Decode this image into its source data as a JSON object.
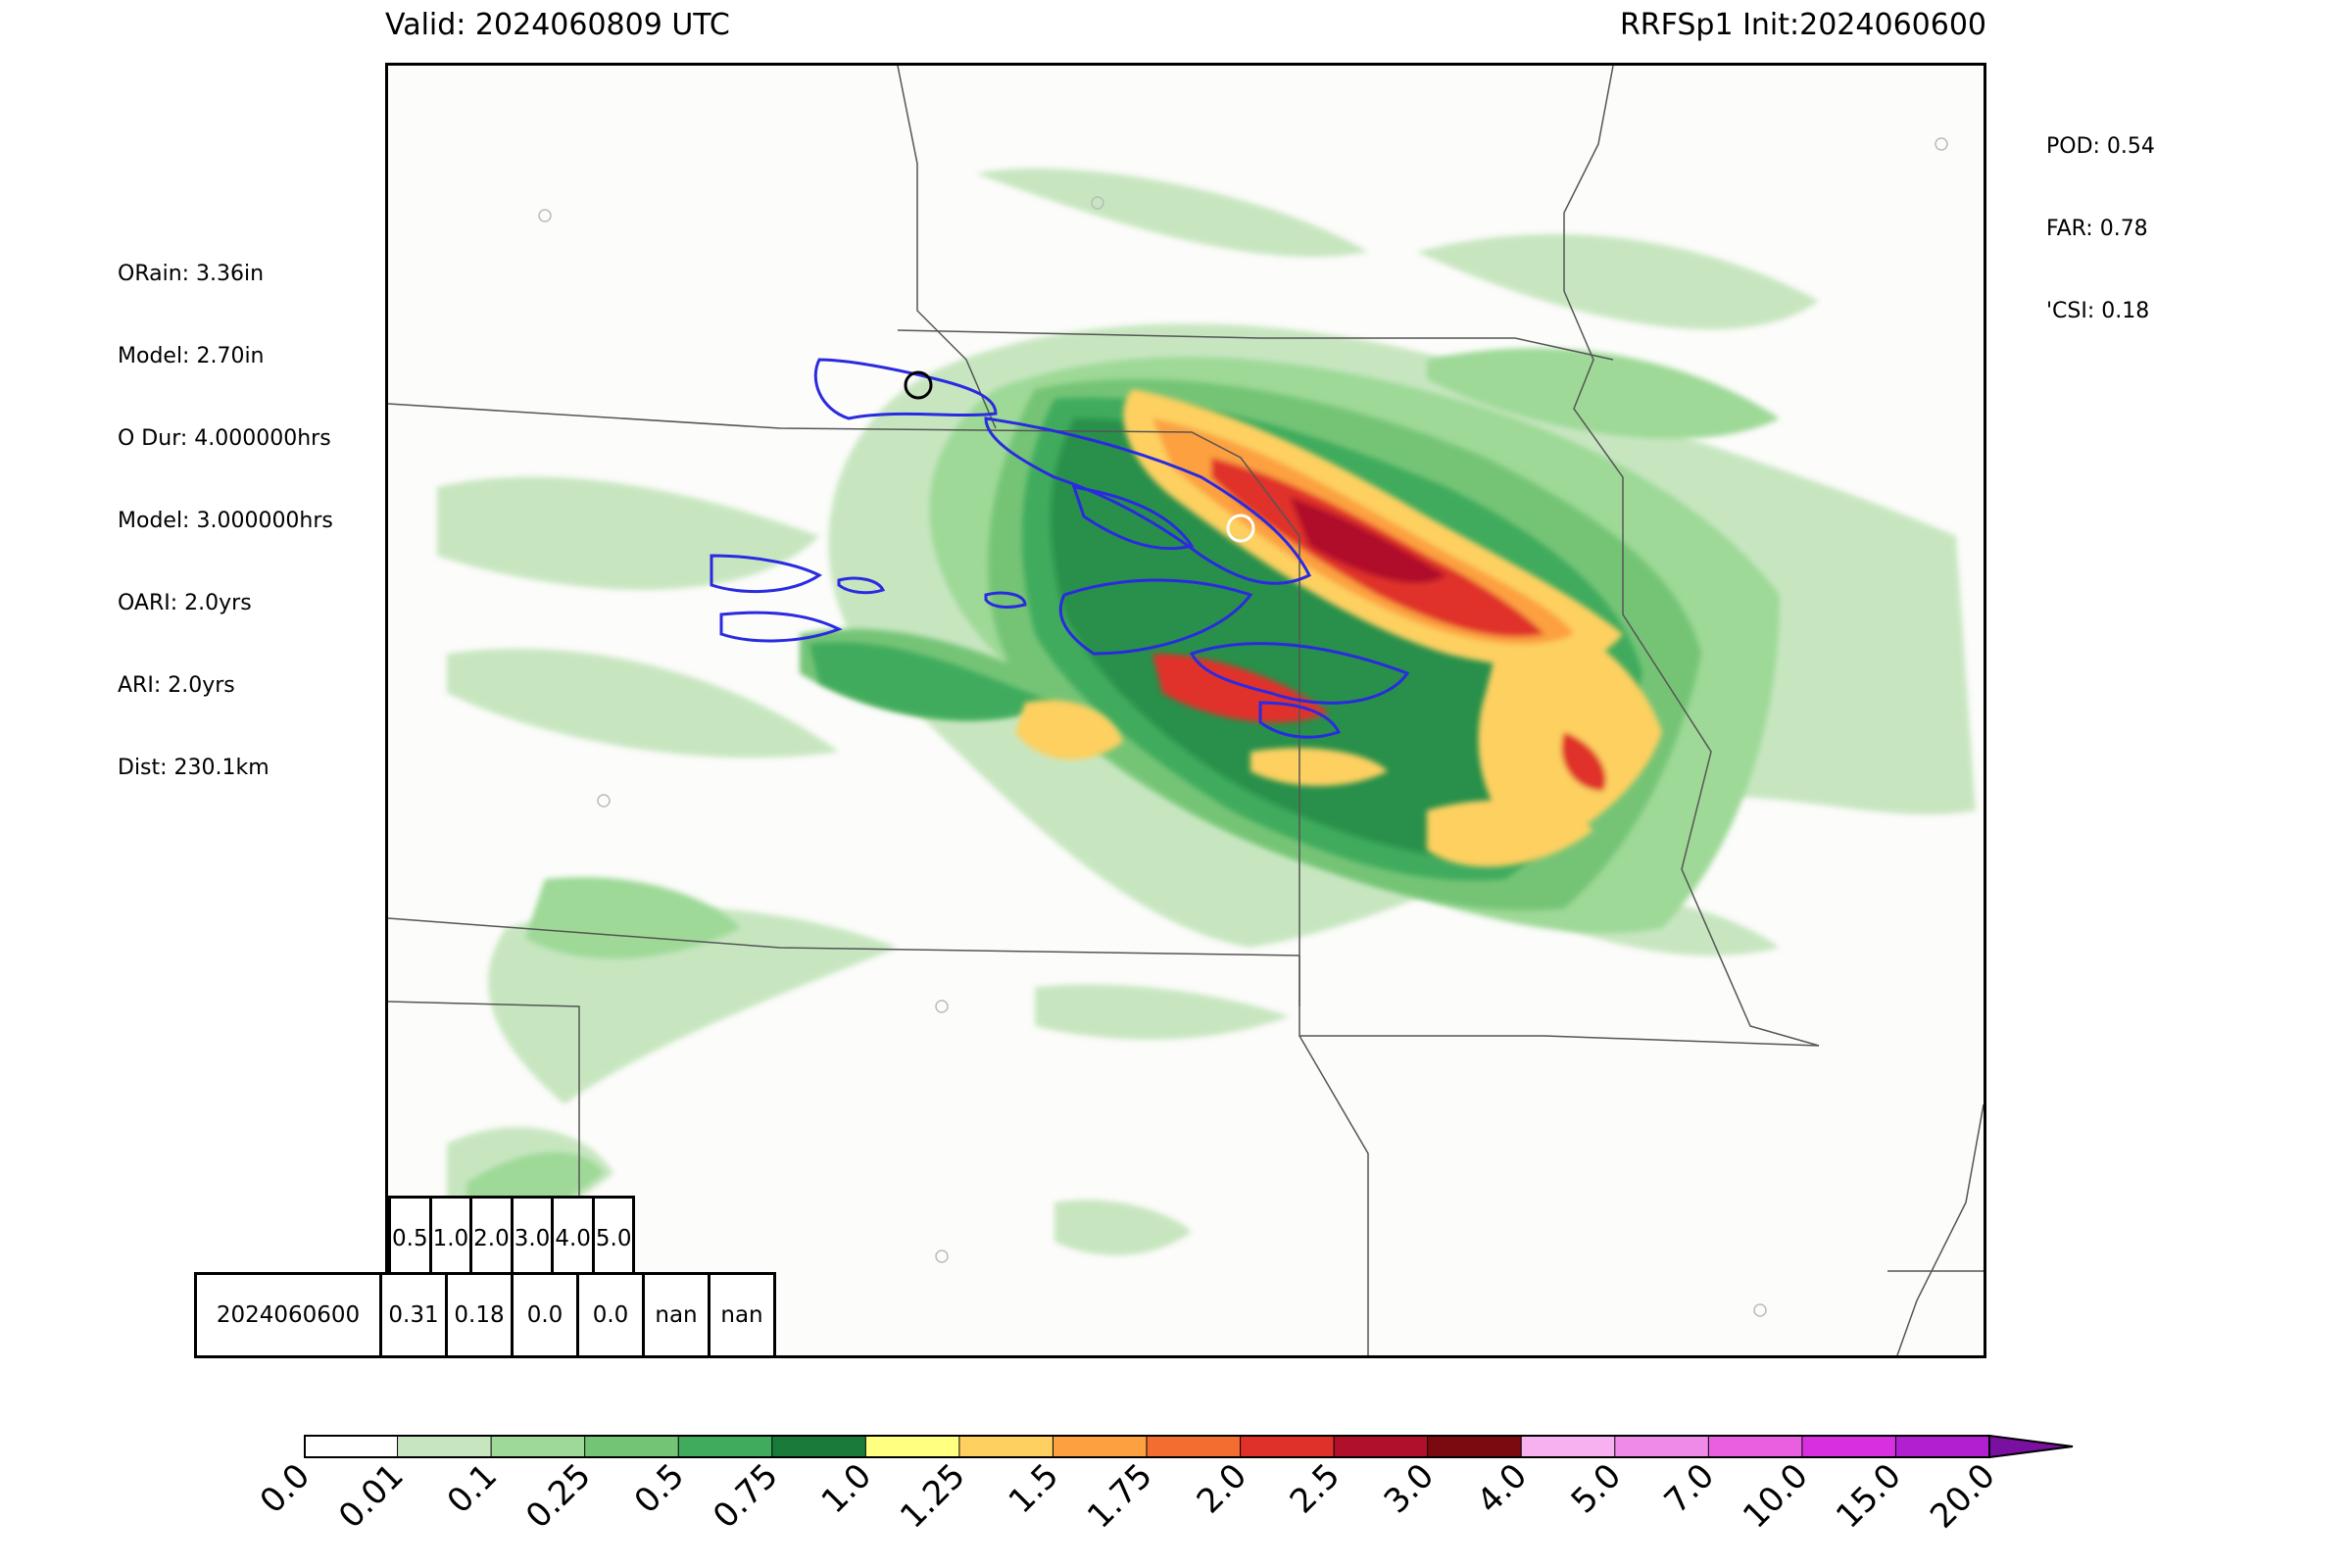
{
  "header": {
    "valid": "Valid: 2024060809 UTC",
    "model_init": "RRFSp1 Init:2024060600"
  },
  "scores": {
    "pod": "POD: 0.54",
    "far": "FAR: 0.78",
    "csi": "'CSI: 0.18"
  },
  "event_info": {
    "orain": "ORain: 3.36in",
    "model_rain": "Model: 2.70in",
    "o_dur": "O Dur: 4.000000hrs",
    "model_dur": "Model: 3.000000hrs",
    "oari": "OARI: 2.0yrs",
    "ari": "ARI: 2.0yrs",
    "dist": "Dist: 230.1km"
  },
  "ari_table": {
    "thresholds": [
      "0.5",
      "1.0",
      "2.0",
      "3.0",
      "4.0",
      "5.0"
    ],
    "row_label": "2024060600",
    "values": [
      "0.31",
      "0.18",
      "0.0",
      "0.0",
      "nan",
      "nan"
    ]
  },
  "colorbar": {
    "ticks": [
      "0.0",
      "0.01",
      "0.1",
      "0.25",
      "0.5",
      "0.75",
      "1.0",
      "1.25",
      "1.5",
      "1.75",
      "2.0",
      "2.5",
      "3.0",
      "4.0",
      "5.0",
      "7.0",
      "10.0",
      "15.0",
      "20.0"
    ],
    "colors": [
      "#ffffff",
      "#c7e6c0",
      "#9ed997",
      "#74c476",
      "#41ab5d",
      "#1a7a3a",
      "#ffff80",
      "#fdd060",
      "#fca040",
      "#f46d30",
      "#e0302a",
      "#b0102a",
      "#7a0a10",
      "#f7b0f0",
      "#f08ae8",
      "#e860e0",
      "#d830e0",
      "#b020d0"
    ],
    "extend_color": "#7a10a0"
  },
  "map": {
    "observed_contour_color": "#2a2ae0",
    "marker_black_color": "#000000",
    "marker_white_color": "#ffffff"
  }
}
